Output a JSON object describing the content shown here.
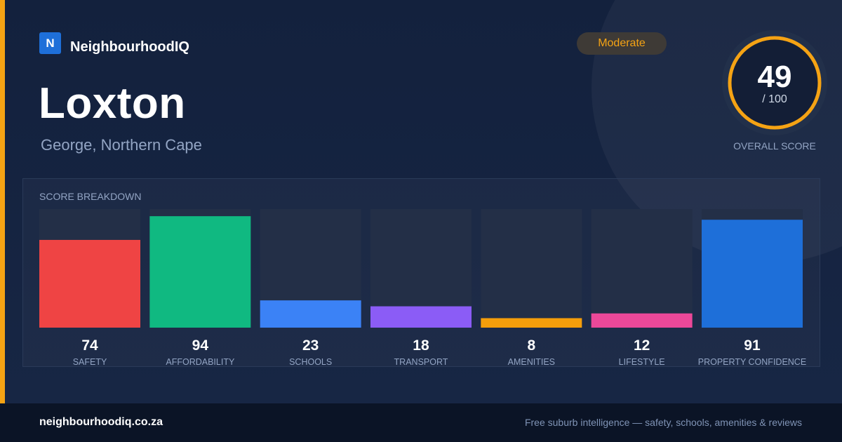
{
  "brand": {
    "logo_letter": "N",
    "name": "NeighbourhoodIQ"
  },
  "place": {
    "name": "Loxton",
    "region": "George, Northern Cape"
  },
  "rating_badge": {
    "label": "Moderate",
    "color": "#f5a314"
  },
  "overall": {
    "score": "49",
    "out_of": "/ 100",
    "caption": "OVERALL SCORE",
    "fraction": 0.49,
    "color": "#f5a314"
  },
  "breakdown": {
    "title": "SCORE BREAKDOWN"
  },
  "chart_data": {
    "type": "bar",
    "title": "SCORE BREAKDOWN",
    "ylim": [
      0,
      100
    ],
    "categories": [
      "SAFETY",
      "AFFORDABILITY",
      "SCHOOLS",
      "TRANSPORT",
      "AMENITIES",
      "LIFESTYLE",
      "PROPERTY CONFIDENCE"
    ],
    "values": [
      74,
      94,
      23,
      18,
      8,
      12,
      91
    ],
    "colors": [
      "#ef4444",
      "#10b981",
      "#3b82f6",
      "#8b5cf6",
      "#f59e0b",
      "#ec4899",
      "#1e6fd9"
    ],
    "grid": false,
    "legend": "none"
  },
  "footer": {
    "url": "neighbourhoodiq.co.za",
    "tagline": "Free suburb intelligence — safety, schools, amenities & reviews"
  }
}
